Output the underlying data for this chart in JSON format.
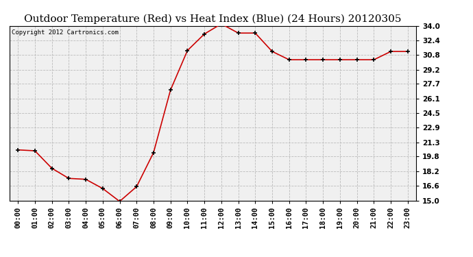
{
  "title": "Outdoor Temperature (Red) vs Heat Index (Blue) (24 Hours) 20120305",
  "copyright": "Copyright 2012 Cartronics.com",
  "x_labels": [
    "00:00",
    "01:00",
    "02:00",
    "03:00",
    "04:00",
    "05:00",
    "06:00",
    "07:00",
    "08:00",
    "09:00",
    "10:00",
    "11:00",
    "12:00",
    "13:00",
    "14:00",
    "15:00",
    "16:00",
    "17:00",
    "18:00",
    "19:00",
    "20:00",
    "21:00",
    "22:00",
    "23:00"
  ],
  "temp_red": [
    20.5,
    20.4,
    18.5,
    17.4,
    17.3,
    16.3,
    14.9,
    16.5,
    20.2,
    27.0,
    31.3,
    33.1,
    34.2,
    33.2,
    33.2,
    31.2,
    30.3,
    30.3,
    30.3,
    30.3,
    30.3,
    30.3,
    31.2,
    31.2
  ],
  "ylim": [
    15.0,
    34.0
  ],
  "yticks": [
    15.0,
    16.6,
    18.2,
    19.8,
    21.3,
    22.9,
    24.5,
    26.1,
    27.7,
    29.2,
    30.8,
    32.4,
    34.0
  ],
  "line_color_red": "#cc0000",
  "background_color": "#ffffff",
  "plot_bg_color": "#f0f0f0",
  "grid_color": "#bbbbbb",
  "title_fontsize": 11,
  "copyright_fontsize": 6.5,
  "tick_fontsize": 7.5,
  "tick_fontweight": "bold"
}
